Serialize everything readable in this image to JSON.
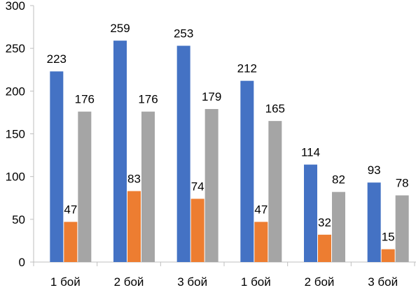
{
  "chart_data": {
    "type": "bar",
    "categories": [
      "1 бой",
      "2 бой",
      "3 бой",
      "1 бой",
      "2 бой",
      "3 бой"
    ],
    "series": [
      {
        "values": [
          223,
          259,
          253,
          212,
          114,
          93
        ],
        "color": "#4472C4"
      },
      {
        "values": [
          47,
          83,
          74,
          47,
          32,
          15
        ],
        "color": "#ED7D31"
      },
      {
        "values": [
          176,
          176,
          179,
          165,
          82,
          78
        ],
        "color": "#A5A5A5"
      }
    ],
    "ylim": [
      0,
      300
    ],
    "yticks": [
      0,
      50,
      100,
      150,
      200,
      250,
      300
    ],
    "grid": false,
    "legend": "none"
  }
}
